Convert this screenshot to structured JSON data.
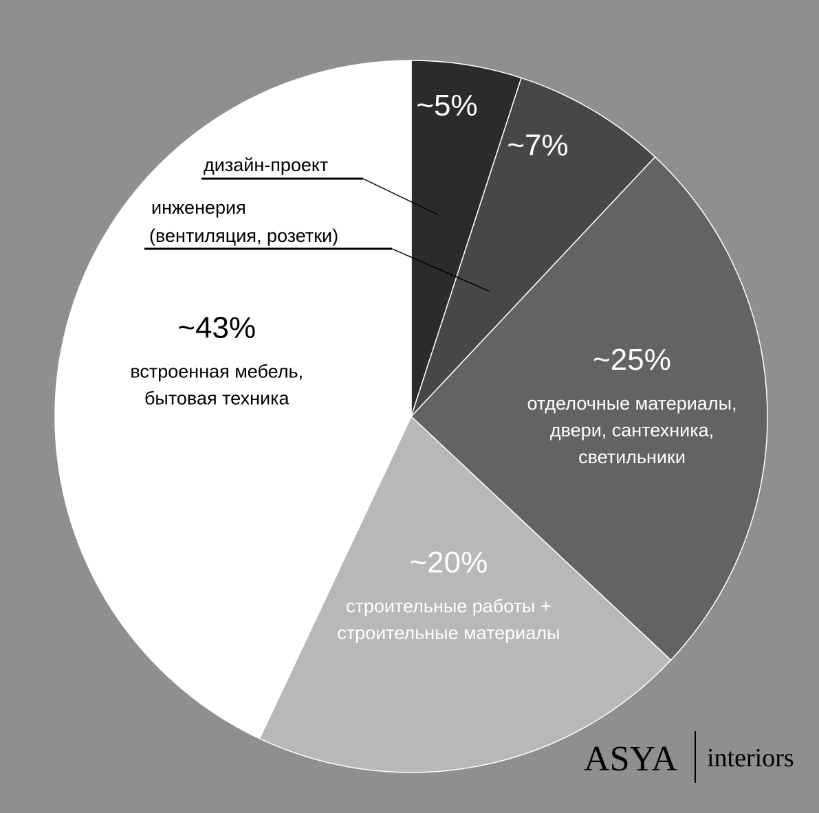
{
  "page": {
    "background": "#8f8f8f"
  },
  "chart_data": {
    "type": "pie",
    "slices": [
      {
        "value": 5,
        "percent_label": "~5%",
        "desc_lines": [],
        "callout_lines": [
          "дизайн-проект"
        ],
        "color": "#2b2b2b",
        "text_color": "#ffffff"
      },
      {
        "value": 7,
        "percent_label": "~7%",
        "desc_lines": [],
        "callout_lines": [
          "инженерия",
          "(вентиляция, розетки)"
        ],
        "color": "#474747",
        "text_color": "#ffffff"
      },
      {
        "value": 25,
        "percent_label": "~25%",
        "desc_lines": [
          "отделочные материалы,",
          "двери, сантехника,",
          "светильники"
        ],
        "callout_lines": [],
        "color": "#636363",
        "text_color": "#ffffff"
      },
      {
        "value": 20,
        "percent_label": "~20%",
        "desc_lines": [
          "строительные работы +",
          "строительные материалы"
        ],
        "callout_lines": [],
        "color": "#b8b8b8",
        "text_color": "#ffffff"
      },
      {
        "value": 43,
        "percent_label": "~43%",
        "desc_lines": [
          "встроенная мебель,",
          "бытовая техника"
        ],
        "callout_lines": [],
        "color": "#ffffff",
        "text_color": "#000000"
      }
    ]
  },
  "logo": {
    "name": "ASYA",
    "suffix": "interiors"
  }
}
